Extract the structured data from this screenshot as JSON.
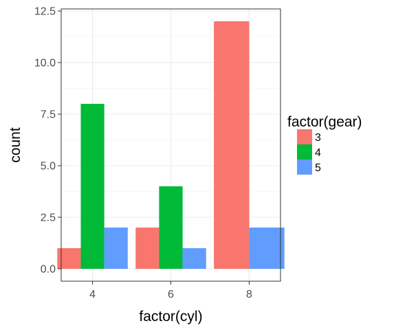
{
  "chart_data": {
    "type": "bar",
    "xlabel": "factor(cyl)",
    "ylabel": "count",
    "categories": [
      "4",
      "6",
      "8"
    ],
    "legend_title": "factor(gear)",
    "legend_position": "right",
    "grid": true,
    "ylim": [
      -0.6,
      12.6
    ],
    "y_ticks": [
      "0.0",
      "2.5",
      "5.0",
      "7.5",
      "10.0",
      "12.5"
    ],
    "series": [
      {
        "name": "3",
        "color": "#F8766D",
        "values": [
          1,
          2,
          12
        ]
      },
      {
        "name": "4",
        "color": "#00BA38",
        "values": [
          8,
          4,
          null
        ]
      },
      {
        "name": "5",
        "color": "#619CFF",
        "values": [
          2,
          1,
          2
        ]
      }
    ]
  }
}
